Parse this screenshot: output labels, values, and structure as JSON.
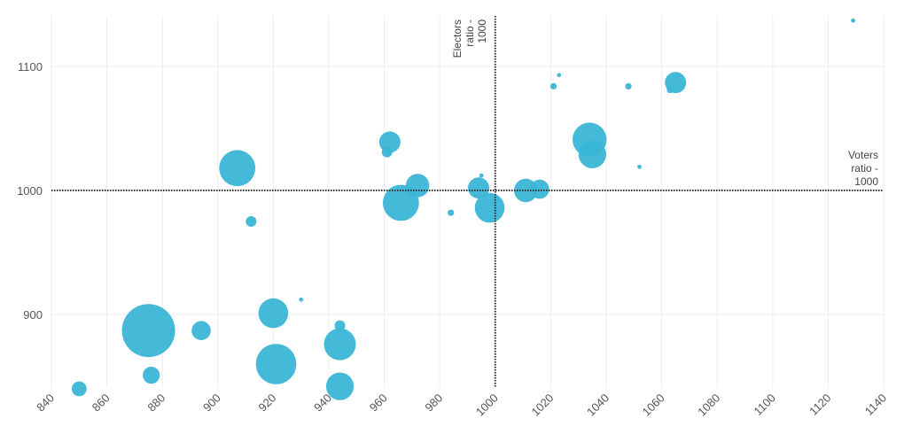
{
  "chart_data": {
    "type": "scatter",
    "subtype": "bubble",
    "color": "#3ab5d6",
    "xlim": [
      840,
      1140
    ],
    "ylim": [
      841,
      1141
    ],
    "xticks": [
      840,
      860,
      880,
      900,
      920,
      940,
      960,
      980,
      1000,
      1020,
      1040,
      1060,
      1080,
      1100,
      1120,
      1140
    ],
    "yticks": [
      900,
      1000,
      1100
    ],
    "grid": true,
    "reference_lines": [
      {
        "axis": "x",
        "value": 1000,
        "label_lines": [
          "Electors",
          "ratio -",
          "1000"
        ]
      },
      {
        "axis": "y",
        "value": 1000,
        "label_lines": [
          "Voters",
          "ratio -",
          "1000"
        ]
      }
    ],
    "points": [
      {
        "x": 850,
        "y": 840,
        "z": 49
      },
      {
        "x": 875,
        "y": 887,
        "z": 625
      },
      {
        "x": 876,
        "y": 851,
        "z": 64
      },
      {
        "x": 894,
        "y": 887,
        "z": 81
      },
      {
        "x": 907,
        "y": 1018,
        "z": 289
      },
      {
        "x": 912,
        "y": 975,
        "z": 25
      },
      {
        "x": 920,
        "y": 901,
        "z": 196
      },
      {
        "x": 921,
        "y": 860,
        "z": 361
      },
      {
        "x": 930,
        "y": 912,
        "z": 4
      },
      {
        "x": 944,
        "y": 891,
        "z": 25
      },
      {
        "x": 944,
        "y": 876,
        "z": 225
      },
      {
        "x": 944,
        "y": 842,
        "z": 169
      },
      {
        "x": 961,
        "y": 1031,
        "z": 25
      },
      {
        "x": 962,
        "y": 1039,
        "z": 100
      },
      {
        "x": 966,
        "y": 990,
        "z": 289
      },
      {
        "x": 972,
        "y": 1004,
        "z": 121
      },
      {
        "x": 984,
        "y": 982,
        "z": 9
      },
      {
        "x": 994,
        "y": 1002,
        "z": 100
      },
      {
        "x": 995,
        "y": 1012,
        "z": 4
      },
      {
        "x": 998,
        "y": 986,
        "z": 196
      },
      {
        "x": 1011,
        "y": 1000,
        "z": 121
      },
      {
        "x": 1016,
        "y": 1001,
        "z": 81
      },
      {
        "x": 1021,
        "y": 1084,
        "z": 9
      },
      {
        "x": 1023,
        "y": 1093,
        "z": 4
      },
      {
        "x": 1034,
        "y": 1041,
        "z": 256
      },
      {
        "x": 1035,
        "y": 1029,
        "z": 169
      },
      {
        "x": 1048,
        "y": 1084,
        "z": 9
      },
      {
        "x": 1052,
        "y": 1019,
        "z": 4
      },
      {
        "x": 1063,
        "y": 1081,
        "z": 9
      },
      {
        "x": 1065,
        "y": 1087,
        "z": 100
      },
      {
        "x": 1129,
        "y": 1137,
        "z": 4
      }
    ]
  }
}
